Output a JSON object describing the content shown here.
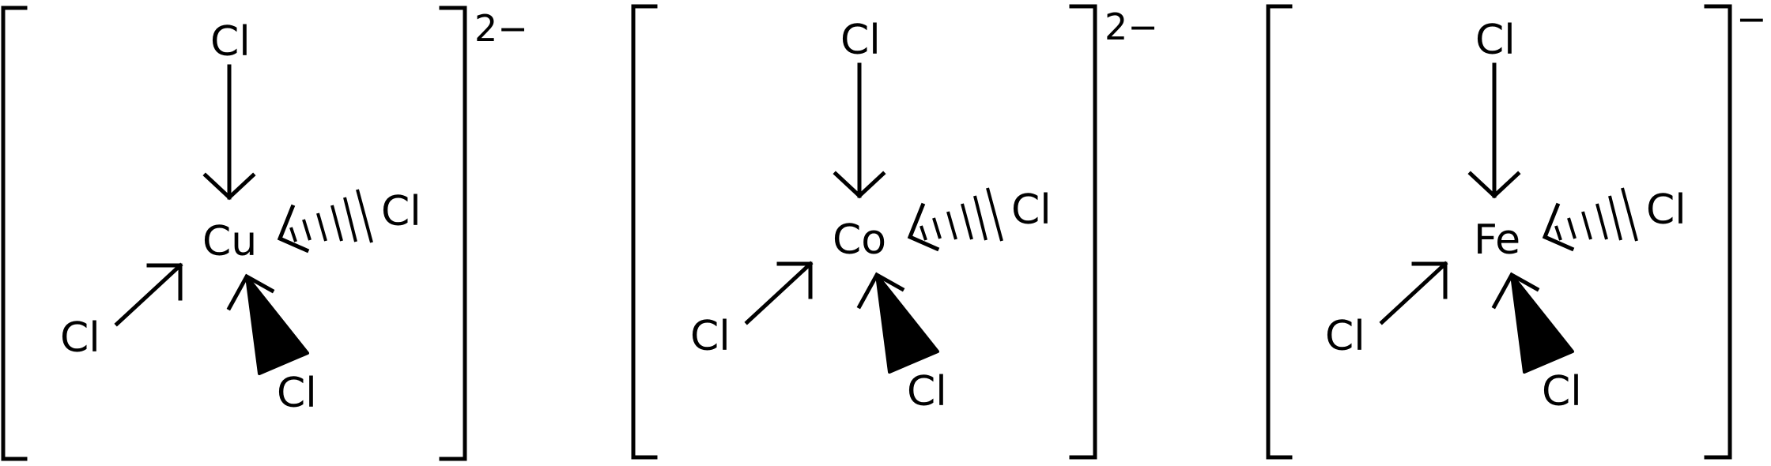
{
  "complexes": [
    {
      "metal": "Cu",
      "ligands": {
        "top": "Cl",
        "right": "Cl",
        "left": "Cl",
        "bottom": "Cl"
      },
      "charge": "2−"
    },
    {
      "metal": "Co",
      "ligands": {
        "top": "Cl",
        "right": "Cl",
        "left": "Cl",
        "bottom": "Cl"
      },
      "charge": "2−"
    },
    {
      "metal": "Fe",
      "ligands": {
        "top": "Cl",
        "right": "Cl",
        "left": "Cl",
        "bottom": "Cl"
      },
      "charge": "−"
    }
  ],
  "colors": {
    "ink": "#000000",
    "background": "#ffffff"
  }
}
